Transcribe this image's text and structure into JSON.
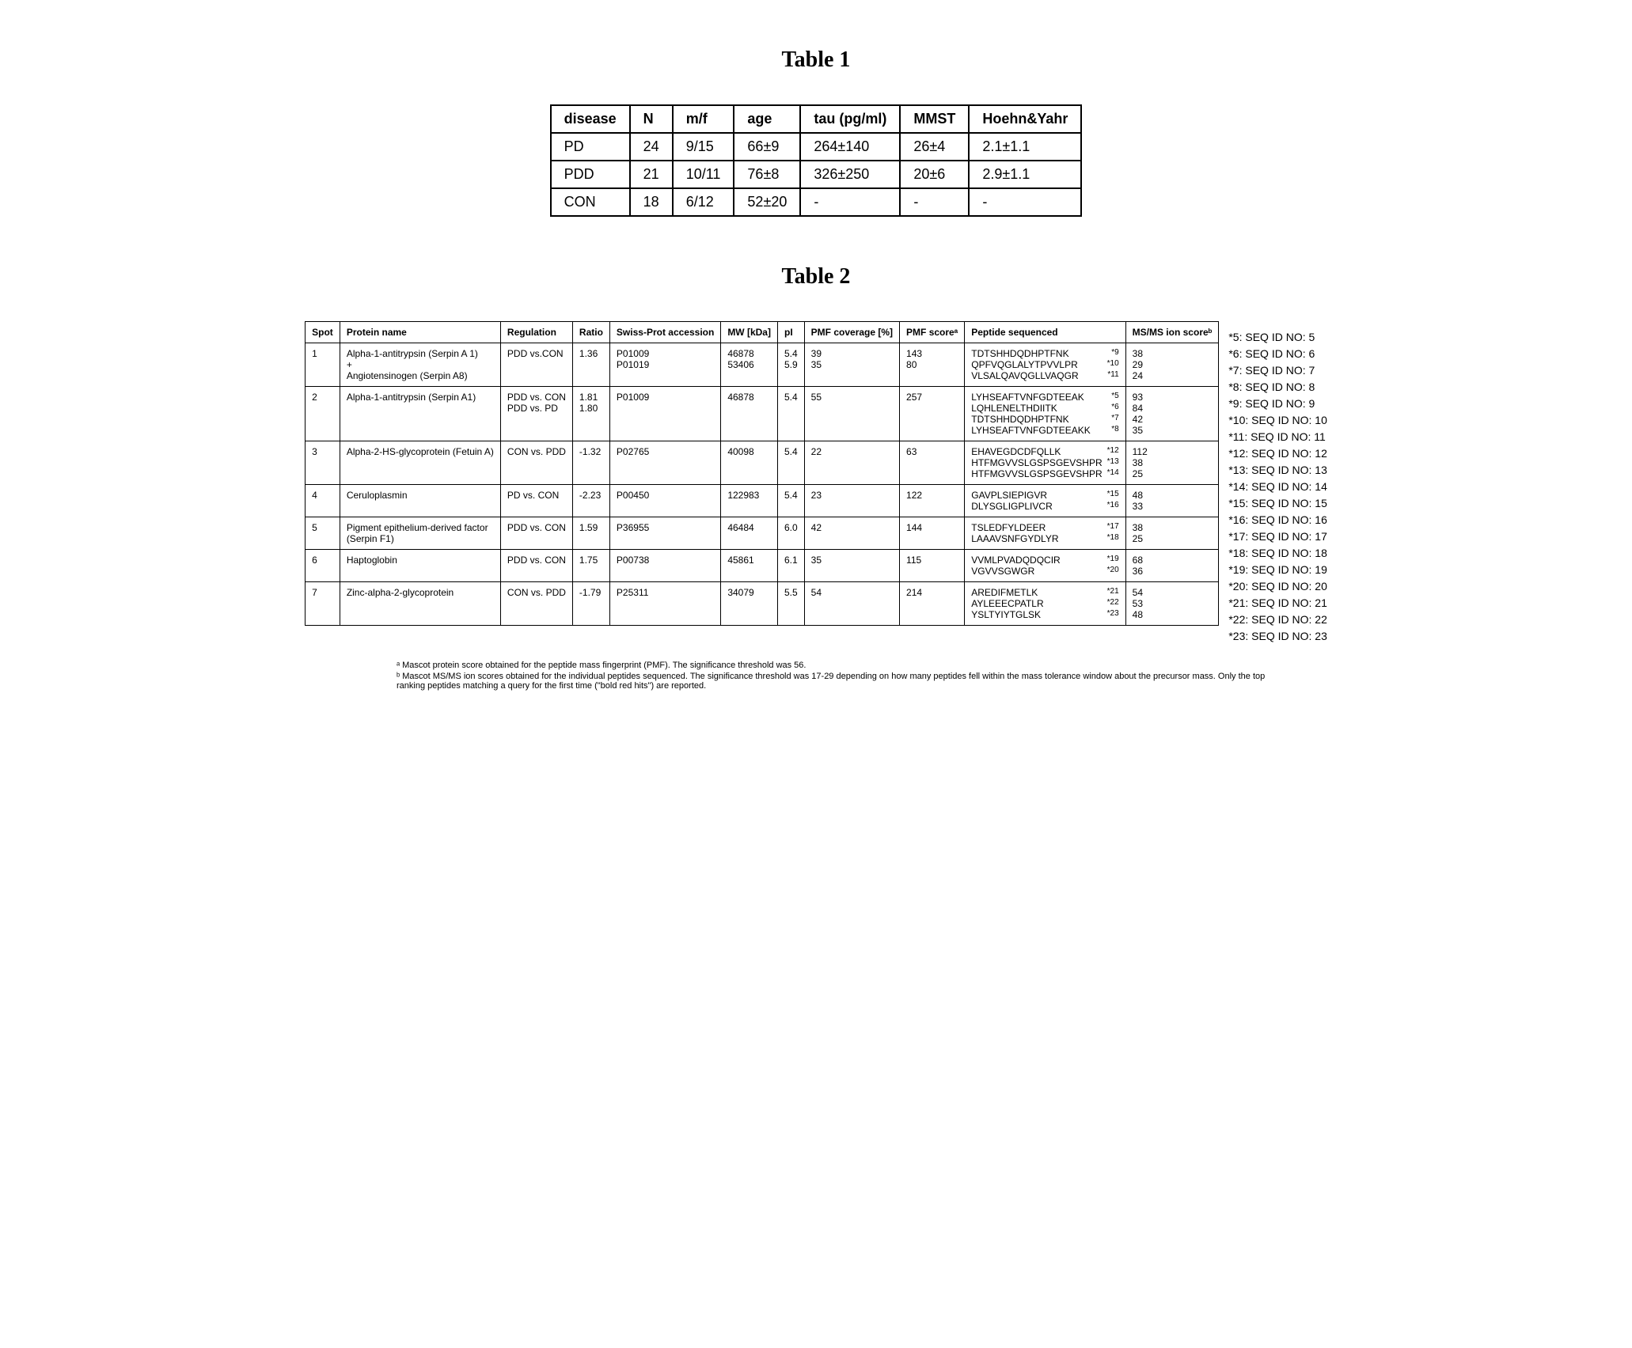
{
  "table1": {
    "title": "Table 1",
    "headers": [
      "disease",
      "N",
      "m/f",
      "age",
      "tau (pg/ml)",
      "MMST",
      "Hoehn&Yahr"
    ],
    "rows": [
      [
        "PD",
        "24",
        "9/15",
        "66±9",
        "264±140",
        "26±4",
        "2.1±1.1"
      ],
      [
        "PDD",
        "21",
        "10/11",
        "76±8",
        "326±250",
        "20±6",
        "2.9±1.1"
      ],
      [
        "CON",
        "18",
        "6/12",
        "52±20",
        "-",
        "-",
        "-"
      ]
    ]
  },
  "table2": {
    "title": "Table 2",
    "headers": [
      "Spot",
      "Protein name",
      "Regulation",
      "Ratio",
      "Swiss-Prot accession",
      "MW [kDa]",
      "pI",
      "PMF coverage [%]",
      "PMF scoreᵃ",
      "Peptide sequenced",
      "MS/MS ion scoreᵇ"
    ],
    "rows": [
      {
        "spot": "1",
        "protein": "Alpha-1-antitrypsin (Serpin A 1)\n+\nAngiotensinogen (Serpin A8)",
        "regulation": "PDD vs.CON",
        "ratio": "1.36",
        "accession": "P01009\nP01019",
        "mw": "46878\n53406",
        "pi": "5.4\n5.9",
        "pmf_cov": "39\n35",
        "pmf_score": "143\n80",
        "peptides": [
          {
            "seq": "TDTSHHDQDHPTFNK",
            "sup": "*9"
          },
          {
            "seq": "QPFVQGLALYTPVVLPR",
            "sup": "*10"
          },
          {
            "seq": "VLSALQAVQGLLVAQGR",
            "sup": "*11"
          }
        ],
        "ms": "38\n29\n24"
      },
      {
        "spot": "2",
        "protein": "Alpha-1-antitrypsin (Serpin A1)",
        "regulation": "PDD vs. CON\nPDD vs. PD",
        "ratio": "1.81\n1.80",
        "accession": "P01009",
        "mw": "46878",
        "pi": "5.4",
        "pmf_cov": "55",
        "pmf_score": "257",
        "peptides": [
          {
            "seq": "LYHSEAFTVNFGDTEEAK",
            "sup": "*5"
          },
          {
            "seq": "LQHLENELTHDIITK",
            "sup": "*6"
          },
          {
            "seq": "TDTSHHDQDHPTFNK",
            "sup": "*7"
          },
          {
            "seq": "LYHSEAFTVNFGDTEEAKK",
            "sup": "*8"
          }
        ],
        "ms": "93\n84\n42\n35"
      },
      {
        "spot": "3",
        "protein": "Alpha-2-HS-glycoprotein (Fetuin A)",
        "regulation": "CON vs. PDD",
        "ratio": "-1.32",
        "accession": "P02765",
        "mw": "40098",
        "pi": "5.4",
        "pmf_cov": "22",
        "pmf_score": "63",
        "peptides": [
          {
            "seq": "EHAVEGDCDFQLLK",
            "sup": "*12"
          },
          {
            "seq": "HTFMGVVSLGSPSGEVSHPR",
            "sup": "*13"
          },
          {
            "seq": "HTFMGVVSLGSPSGEVSHPR",
            "sup": "*14"
          }
        ],
        "ms": "112\n38\n25"
      },
      {
        "spot": "4",
        "protein": "Ceruloplasmin",
        "regulation": "PD vs. CON",
        "ratio": "-2.23",
        "accession": "P00450",
        "mw": "122983",
        "pi": "5.4",
        "pmf_cov": "23",
        "pmf_score": "122",
        "peptides": [
          {
            "seq": "GAVPLSIEPIGVR",
            "sup": "*15"
          },
          {
            "seq": "DLYSGLIGPLIVCR",
            "sup": "*16"
          }
        ],
        "ms": "48\n33"
      },
      {
        "spot": "5",
        "protein": "Pigment epithelium-derived factor\n(Serpin F1)",
        "regulation": "PDD vs. CON",
        "ratio": "1.59",
        "accession": "P36955",
        "mw": "46484",
        "pi": "6.0",
        "pmf_cov": "42",
        "pmf_score": "144",
        "peptides": [
          {
            "seq": "TSLEDFYLDEER",
            "sup": "*17"
          },
          {
            "seq": "LAAAVSNFGYDLYR",
            "sup": "*18"
          }
        ],
        "ms": "38\n25"
      },
      {
        "spot": "6",
        "protein": "Haptoglobin",
        "regulation": "PDD vs. CON",
        "ratio": "1.75",
        "accession": "P00738",
        "mw": "45861",
        "pi": "6.1",
        "pmf_cov": "35",
        "pmf_score": "115",
        "peptides": [
          {
            "seq": "VVMLPVADQDQCIR",
            "sup": "*19"
          },
          {
            "seq": "VGVVSGWGR",
            "sup": "*20"
          }
        ],
        "ms": "68\n36"
      },
      {
        "spot": "7",
        "protein": "Zinc-alpha-2-glycoprotein",
        "regulation": "CON vs. PDD",
        "ratio": "-1.79",
        "accession": "P25311",
        "mw": "34079",
        "pi": "5.5",
        "pmf_cov": "54",
        "pmf_score": "214",
        "peptides": [
          {
            "seq": "AREDIFMETLK",
            "sup": "*21"
          },
          {
            "seq": "AYLEEECPATLR",
            "sup": "*22"
          },
          {
            "seq": "YSLTYIYTGLSK",
            "sup": "*23"
          }
        ],
        "ms": "54\n53\n48"
      }
    ]
  },
  "seq_legend": [
    "*5: SEQ ID NO: 5",
    "*6: SEQ ID NO: 6",
    "*7: SEQ ID NO: 7",
    "*8: SEQ ID NO: 8",
    "*9: SEQ ID NO: 9",
    "*10: SEQ ID NO: 10",
    "*11: SEQ ID NO: 11",
    "*12: SEQ ID NO: 12",
    "*13: SEQ ID NO: 13",
    "*14: SEQ ID NO: 14",
    "*15: SEQ ID NO: 15",
    "*16: SEQ ID NO: 16",
    "*17: SEQ ID NO: 17",
    "*18: SEQ ID NO: 18",
    "*19: SEQ ID NO: 19",
    "*20: SEQ ID NO: 20",
    "*21: SEQ ID NO: 21",
    "*22: SEQ ID NO: 22",
    "*23: SEQ ID NO: 23"
  ],
  "footnotes": {
    "a": "ᵃ Mascot protein score obtained for the peptide mass fingerprint (PMF). The significance threshold was 56.",
    "b": "ᵇ Mascot MS/MS ion scores obtained for the individual peptides sequenced. The significance threshold was 17-29 depending on how many peptides fell within the mass tolerance window about the precursor mass. Only the top ranking peptides matching a query for the first time (\"bold red hits\") are reported."
  }
}
